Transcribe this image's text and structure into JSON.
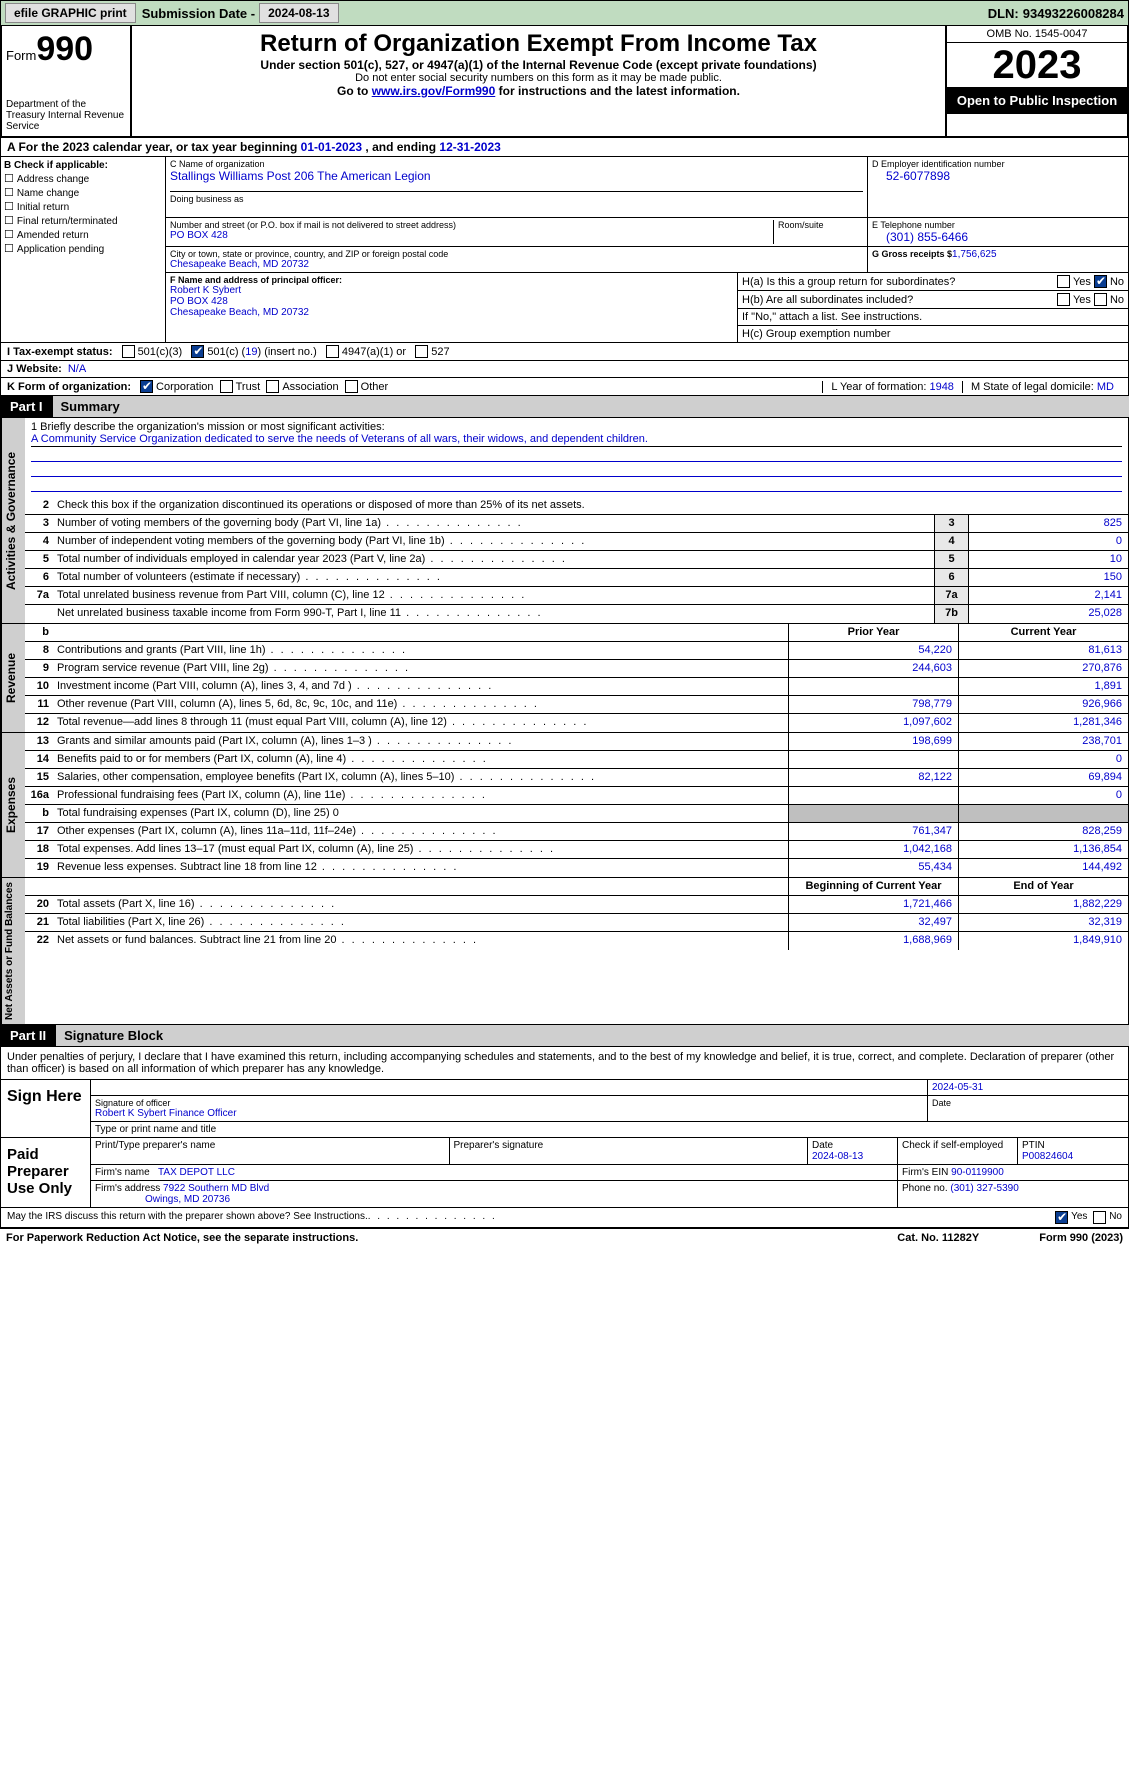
{
  "topbar": {
    "efile": "efile GRAPHIC print",
    "sub_lbl": "Submission Date -",
    "sub_val": "2024-08-13",
    "dln_lbl": "DLN:",
    "dln_val": "93493226008284"
  },
  "header": {
    "form_word": "Form",
    "form_num": "990",
    "title": "Return of Organization Exempt From Income Tax",
    "sub1": "Under section 501(c), 527, or 4947(a)(1) of the Internal Revenue Code (except private foundations)",
    "sub2": "Do not enter social security numbers on this form as it may be made public.",
    "sub3a": "Go to ",
    "sub3link": "www.irs.gov/Form990",
    "sub3b": " for instructions and the latest information.",
    "dept": "Department of the Treasury\nInternal Revenue Service",
    "omb": "OMB No. 1545-0047",
    "year": "2023",
    "inspect": "Open to Public Inspection"
  },
  "period": {
    "a": "A  For the 2023 calendar year, or tax year beginning ",
    "begin": "01-01-2023",
    "mid": "   , and ending ",
    "end": "12-31-2023"
  },
  "boxB": {
    "hdr": "B Check if applicable:",
    "items": [
      "Address change",
      "Name change",
      "Initial return",
      "Final return/terminated",
      "Amended return",
      "Application pending"
    ]
  },
  "boxC": {
    "name_lbl": "C Name of organization",
    "name": "Stallings Williams Post 206 The American Legion",
    "dba_lbl": "Doing business as",
    "addr_lbl": "Number and street (or P.O. box if mail is not delivered to street address)",
    "addr": "PO BOX 428",
    "room_lbl": "Room/suite",
    "city_lbl": "City or town, state or province, country, and ZIP or foreign postal code",
    "city": "Chesapeake Beach, MD  20732"
  },
  "boxD": {
    "lbl": "D Employer identification number",
    "val": "52-6077898"
  },
  "boxE": {
    "lbl": "E Telephone number",
    "val": "(301) 855-6466"
  },
  "boxG": {
    "lbl": "G Gross receipts $",
    "val": "1,756,625"
  },
  "boxF": {
    "lbl": "F  Name and address of principal officer:",
    "name": "Robert K Sybert",
    "addr1": "PO BOX 428",
    "addr2": "Chesapeake Beach, MD  20732"
  },
  "boxH": {
    "ha": "H(a)  Is this a group return for subordinates?",
    "hb": "H(b)  Are all subordinates included?",
    "hb2": "If \"No,\" attach a list. See instructions.",
    "hc": "H(c)  Group exemption number",
    "yes": "Yes",
    "no": "No"
  },
  "boxI": {
    "lbl": "I   Tax-exempt status:",
    "c3": "501(c)(3)",
    "c": "501(c) (",
    "cn": "19",
    "c2": ") (insert no.)",
    "a4947": "4947(a)(1) or",
    "s527": "527"
  },
  "boxJ": {
    "lbl": "J   Website:",
    "val": "N/A"
  },
  "boxK": {
    "lbl": "K Form of organization:",
    "corp": "Corporation",
    "trust": "Trust",
    "assoc": "Association",
    "other": "Other"
  },
  "boxL": {
    "lbl": "L Year of formation:",
    "val": "1948"
  },
  "boxM": {
    "lbl": "M State of legal domicile:",
    "val": "MD"
  },
  "part1": {
    "tag": "Part I",
    "title": "Summary"
  },
  "mission": {
    "q": "1   Briefly describe the organization's mission or most significant activities:",
    "text": "A Community Service Organization dedicated to serve the needs of Veterans of all wars, their widows, and dependent children."
  },
  "gov": {
    "tab": "Activities & Governance",
    "l2": "Check this box       if the organization discontinued its operations or disposed of more than 25% of its net assets.",
    "rows": [
      {
        "n": "3",
        "d": "Number of voting members of the governing body (Part VI, line 1a)",
        "b": "3",
        "v": "825"
      },
      {
        "n": "4",
        "d": "Number of independent voting members of the governing body (Part VI, line 1b)",
        "b": "4",
        "v": "0"
      },
      {
        "n": "5",
        "d": "Total number of individuals employed in calendar year 2023 (Part V, line 2a)",
        "b": "5",
        "v": "10"
      },
      {
        "n": "6",
        "d": "Total number of volunteers (estimate if necessary)",
        "b": "6",
        "v": "150"
      },
      {
        "n": "7a",
        "d": "Total unrelated business revenue from Part VIII, column (C), line 12",
        "b": "7a",
        "v": "2,141"
      },
      {
        "n": "",
        "d": "Net unrelated business taxable income from Form 990-T, Part I, line 11",
        "b": "7b",
        "v": "25,028"
      }
    ]
  },
  "rev": {
    "tab": "Revenue",
    "hdr_b": "b",
    "hdr_py": "Prior Year",
    "hdr_cy": "Current Year",
    "rows": [
      {
        "n": "8",
        "d": "Contributions and grants (Part VIII, line 1h)",
        "p": "54,220",
        "c": "81,613"
      },
      {
        "n": "9",
        "d": "Program service revenue (Part VIII, line 2g)",
        "p": "244,603",
        "c": "270,876"
      },
      {
        "n": "10",
        "d": "Investment income (Part VIII, column (A), lines 3, 4, and 7d )",
        "p": "",
        "c": "1,891"
      },
      {
        "n": "11",
        "d": "Other revenue (Part VIII, column (A), lines 5, 6d, 8c, 9c, 10c, and 11e)",
        "p": "798,779",
        "c": "926,966"
      },
      {
        "n": "12",
        "d": "Total revenue—add lines 8 through 11 (must equal Part VIII, column (A), line 12)",
        "p": "1,097,602",
        "c": "1,281,346"
      }
    ]
  },
  "exp": {
    "tab": "Expenses",
    "rows": [
      {
        "n": "13",
        "d": "Grants and similar amounts paid (Part IX, column (A), lines 1–3 )",
        "p": "198,699",
        "c": "238,701"
      },
      {
        "n": "14",
        "d": "Benefits paid to or for members (Part IX, column (A), line 4)",
        "p": "",
        "c": "0"
      },
      {
        "n": "15",
        "d": "Salaries, other compensation, employee benefits (Part IX, column (A), lines 5–10)",
        "p": "82,122",
        "c": "69,894"
      },
      {
        "n": "16a",
        "d": "Professional fundraising fees (Part IX, column (A), line 11e)",
        "p": "",
        "c": "0"
      },
      {
        "n": "b",
        "d": "Total fundraising expenses (Part IX, column (D), line 25) 0",
        "p": "GREY",
        "c": "GREY"
      },
      {
        "n": "17",
        "d": "Other expenses (Part IX, column (A), lines 11a–11d, 11f–24e)",
        "p": "761,347",
        "c": "828,259"
      },
      {
        "n": "18",
        "d": "Total expenses. Add lines 13–17 (must equal Part IX, column (A), line 25)",
        "p": "1,042,168",
        "c": "1,136,854"
      },
      {
        "n": "19",
        "d": "Revenue less expenses. Subtract line 18 from line 12",
        "p": "55,434",
        "c": "144,492"
      }
    ]
  },
  "na": {
    "tab": "Net Assets or Fund Balances",
    "hdr_py": "Beginning of Current Year",
    "hdr_cy": "End of Year",
    "rows": [
      {
        "n": "20",
        "d": "Total assets (Part X, line 16)",
        "p": "1,721,466",
        "c": "1,882,229"
      },
      {
        "n": "21",
        "d": "Total liabilities (Part X, line 26)",
        "p": "32,497",
        "c": "32,319"
      },
      {
        "n": "22",
        "d": "Net assets or fund balances. Subtract line 21 from line 20",
        "p": "1,688,969",
        "c": "1,849,910"
      }
    ]
  },
  "part2": {
    "tag": "Part II",
    "title": "Signature Block"
  },
  "sig": {
    "decl": "Under penalties of perjury, I declare that I have examined this return, including accompanying schedules and statements, and to the best of my knowledge and belief, it is true, correct, and complete. Declaration of preparer (other than officer) is based on all information of which preparer has any knowledge.",
    "sign_here": "Sign Here",
    "sig_of": "Signature of officer",
    "sig_name": "Robert K Sybert Finance Officer",
    "sig_type": "Type or print name and title",
    "date_lbl": "Date",
    "date_val": "2024-05-31",
    "paid": "Paid Preparer Use Only",
    "prep_name_lbl": "Print/Type preparer's name",
    "prep_sig_lbl": "Preparer's signature",
    "prep_date_lbl": "Date",
    "prep_date": "2024-08-13",
    "prep_self": "Check        if self-employed",
    "ptin_lbl": "PTIN",
    "ptin": "P00824604",
    "firm_name_lbl": "Firm's name",
    "firm_name": "TAX DEPOT LLC",
    "firm_ein_lbl": "Firm's EIN",
    "firm_ein": "90-0119900",
    "firm_addr_lbl": "Firm's address",
    "firm_addr1": "7922 Southern MD Blvd",
    "firm_addr2": "Owings, MD  20736",
    "phone_lbl": "Phone no.",
    "phone": "(301) 327-5390",
    "discuss": "May the IRS discuss this return with the preparer shown above? See Instructions.",
    "yes": "Yes",
    "no": "No"
  },
  "footer": {
    "pra": "For Paperwork Reduction Act Notice, see the separate instructions.",
    "cat": "Cat. No. 11282Y",
    "form": "Form 990 (2023)"
  },
  "colors": {
    "topbar_bg": "#c0dcc0",
    "link": "#0000cc",
    "check_on": "#0aado3d91",
    "grey_tab": "#cfcfcf"
  }
}
